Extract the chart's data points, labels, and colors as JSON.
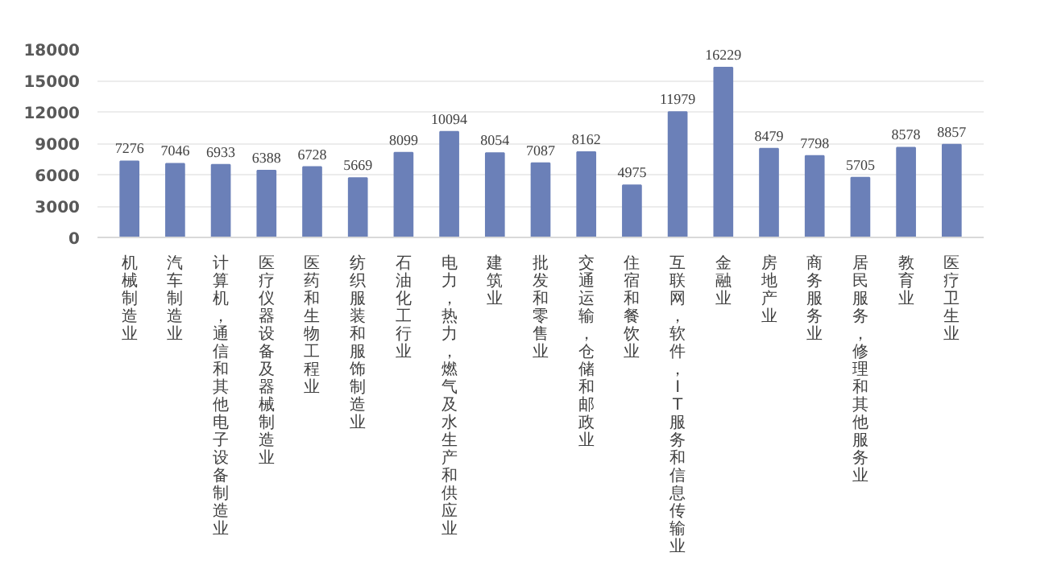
{
  "chart_data": {
    "type": "bar",
    "categories": [
      "机械制造业",
      "汽车制造业",
      "计算机，通信和其他电子设备制造业",
      "医疗仪器设备及器械制造业",
      "医药和生物工程业",
      "纺织服装和服饰制造业",
      "石油化工行业",
      "电力，热力，燃气及水生产和供应业",
      "建筑业",
      "批发和零售业",
      "交通运输，仓储和邮政业",
      "住宿和餐饮业",
      "互联网，软件，IT服务和信息传输业",
      "金融业",
      "房地产业",
      "商务服务业",
      "居民服务，修理和其他服务业",
      "教育业",
      "医疗卫生业"
    ],
    "values": [
      7276,
      7046,
      6933,
      6388,
      6728,
      5669,
      8099,
      10094,
      8054,
      7087,
      8162,
      4975,
      11979,
      16229,
      8479,
      7798,
      5705,
      8578,
      8857
    ],
    "color": "#6b80b8",
    "ylim": [
      0,
      18000
    ],
    "yticks": [
      0,
      3000,
      6000,
      9000,
      12000,
      15000,
      18000
    ],
    "grid": "y",
    "data_labels": true
  }
}
